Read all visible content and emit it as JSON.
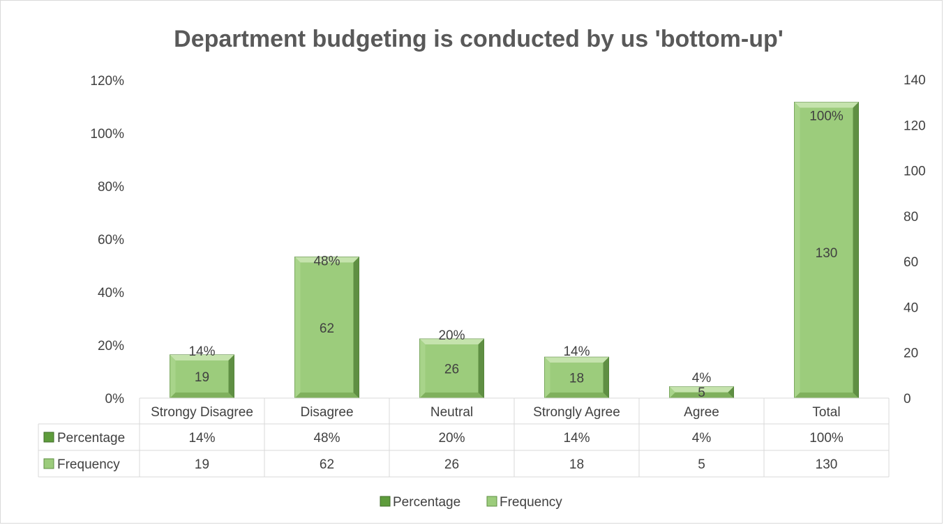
{
  "chart_data": {
    "type": "bar",
    "title": "Department budgeting is conducted by us 'bottom-up'",
    "categories": [
      "Strongy Disagree",
      "Disagree",
      "Neutral",
      "Strongly Agree",
      "Agree",
      "Total"
    ],
    "series": [
      {
        "name": "Percentage",
        "axis": "left",
        "values": [
          14,
          48,
          20,
          14,
          4,
          100
        ],
        "labels": [
          "14%",
          "48%",
          "20%",
          "14%",
          "4%",
          "100%"
        ]
      },
      {
        "name": "Frequency",
        "axis": "right",
        "values": [
          19,
          62,
          26,
          18,
          5,
          130
        ],
        "labels": [
          "19",
          "62",
          "26",
          "18",
          "5",
          "130"
        ]
      }
    ],
    "y_left": {
      "ticks": [
        "0%",
        "20%",
        "40%",
        "60%",
        "80%",
        "100%",
        "120%"
      ],
      "range": [
        0,
        120
      ]
    },
    "y_right": {
      "ticks": [
        "0",
        "20",
        "40",
        "60",
        "80",
        "100",
        "120",
        "140"
      ],
      "range": [
        0,
        140
      ]
    },
    "data_table": true,
    "legend_position": "bottom",
    "colors": {
      "percentage": "#5e9c3c",
      "frequency": "#9ccc7c",
      "frequency_top": "#c5e3ad",
      "text": "#404040",
      "title": "#595959",
      "grid": "#d9d9d9"
    }
  }
}
